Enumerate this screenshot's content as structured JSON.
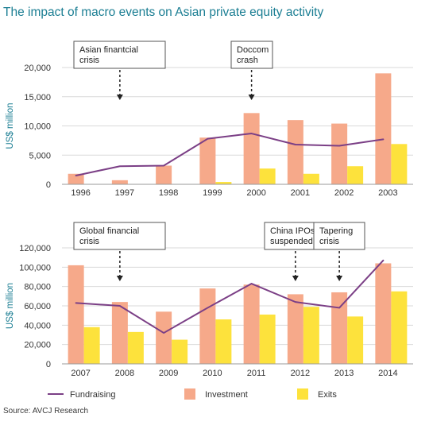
{
  "title": "The impact of macro events on Asian private equity activity",
  "source": "Source: AVCJ Research",
  "colors": {
    "investment": "#f6a98a",
    "exits": "#fde23c",
    "fundraising": "#7b3f86",
    "axis": "#1b7e93",
    "grid": "#d9d9d9"
  },
  "legend": [
    {
      "key": "fundraising",
      "label": "Fundraising",
      "shape": "line"
    },
    {
      "key": "investment",
      "label": "Investment",
      "shape": "square"
    },
    {
      "key": "exits",
      "label": "Exits",
      "shape": "square"
    }
  ],
  "chart_data": [
    {
      "type": "bar",
      "categories": [
        "1996",
        "1997",
        "1998",
        "1999",
        "2000",
        "2001",
        "2002",
        "2003"
      ],
      "series": [
        {
          "name": "Investment",
          "kind": "bar",
          "values": [
            1800,
            700,
            3200,
            8000,
            12200,
            11000,
            10400,
            19000
          ]
        },
        {
          "name": "Exits",
          "kind": "bar",
          "values": [
            0,
            0,
            0,
            400,
            2700,
            1800,
            3100,
            6900
          ]
        },
        {
          "name": "Fundraising",
          "kind": "line",
          "values": [
            1500,
            3100,
            3200,
            7800,
            8700,
            6800,
            6600,
            7700
          ]
        }
      ],
      "ylabel": "US$ million",
      "ylim": [
        0,
        20000
      ],
      "yticks": [
        "0",
        "5,000",
        "10,000",
        "15,000",
        "20,000"
      ],
      "grid": "horizontal",
      "annotations": [
        {
          "lines": [
            "Asian finantcial",
            "crisis"
          ],
          "category": "1997"
        },
        {
          "lines": [
            "Doccom",
            "crash"
          ],
          "category": "2000"
        }
      ]
    },
    {
      "type": "bar",
      "categories": [
        "2007",
        "2008",
        "2009",
        "2010",
        "2011",
        "2012",
        "2013",
        "2014"
      ],
      "series": [
        {
          "name": "Investment",
          "kind": "bar",
          "values": [
            102000,
            64000,
            54000,
            78000,
            82000,
            72000,
            74000,
            104000
          ]
        },
        {
          "name": "Exits",
          "kind": "bar",
          "values": [
            38000,
            33000,
            25000,
            46000,
            51000,
            59000,
            49000,
            75000
          ]
        },
        {
          "name": "Fundraising",
          "kind": "line",
          "values": [
            63000,
            60000,
            32000,
            58000,
            83000,
            64000,
            58000,
            107000
          ]
        }
      ],
      "ylabel": "US$ million",
      "ylim": [
        0,
        120000
      ],
      "yticks": [
        "0",
        "20,000",
        "40,000",
        "60,000",
        "80,000",
        "100,000",
        "120,000"
      ],
      "grid": "horizontal",
      "annotations": [
        {
          "lines": [
            "Global financial",
            "crisis"
          ],
          "category": "2008"
        },
        {
          "lines": [
            "China IPOs",
            "suspended"
          ],
          "category": "2012"
        },
        {
          "lines": [
            "Tapering",
            "crisis"
          ],
          "category": "2013"
        }
      ]
    }
  ]
}
